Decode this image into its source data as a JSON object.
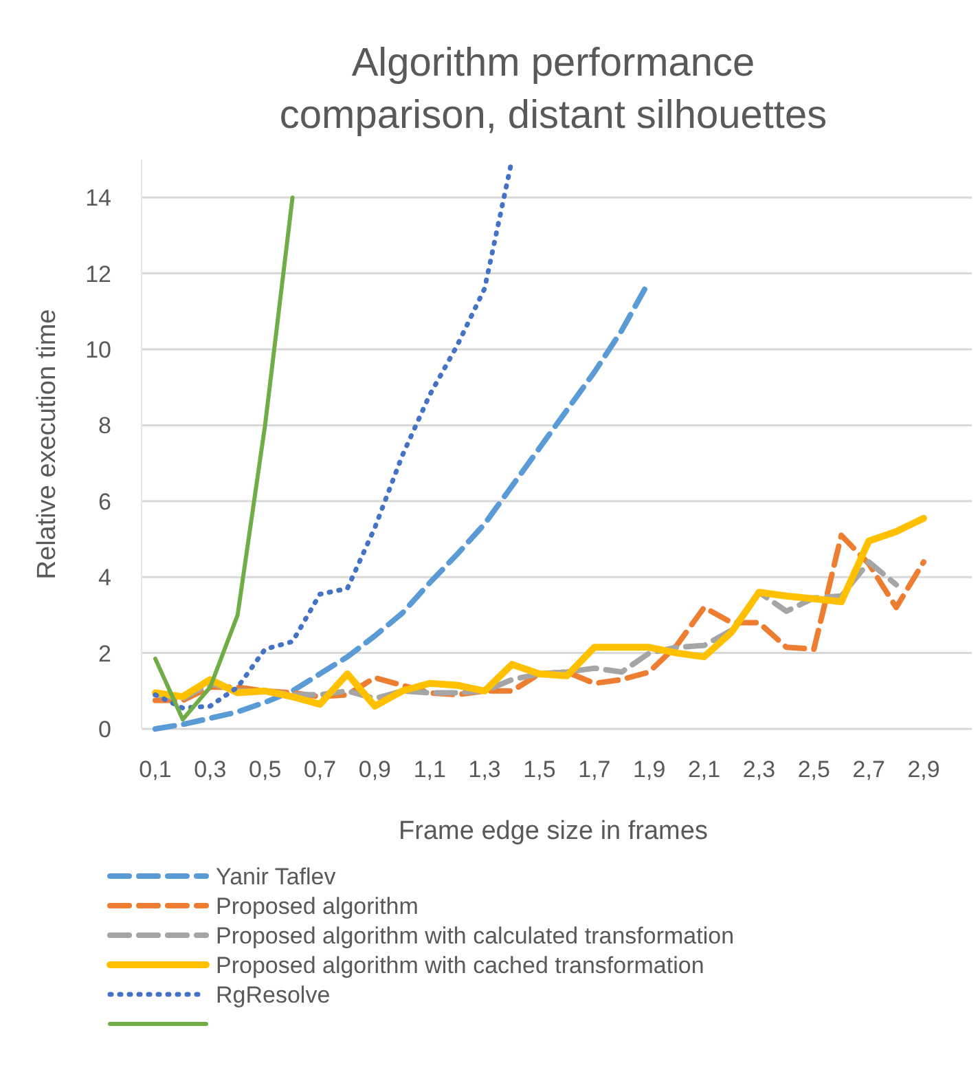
{
  "chart_data": {
    "type": "line",
    "title": "Algorithm performance comparison, distant silhouettes",
    "xlabel": "Frame edge size in frames",
    "ylabel": "Relative execution time",
    "categories": [
      "0,1",
      null,
      "0,3",
      null,
      "0,5",
      null,
      "0,7",
      null,
      "0,9",
      null,
      "1,1",
      null,
      "1,3",
      null,
      "1,5",
      null,
      "1,7",
      null,
      "1,9",
      null,
      "2,1",
      null,
      "2,3",
      null,
      "2,5",
      null,
      "2,7",
      null,
      "2,9"
    ],
    "ylim": [
      0,
      15
    ],
    "yticks": [
      0,
      2,
      4,
      6,
      8,
      10,
      12,
      14
    ],
    "grid": "y",
    "legend": "bottom",
    "series": [
      {
        "name": "Yanir Taflev",
        "color": "#5b9bd5",
        "line_style": "dashed",
        "values": [
          0,
          0.12,
          0.28,
          0.45,
          0.7,
          1.0,
          1.45,
          1.9,
          2.45,
          3.05,
          3.85,
          4.6,
          5.4,
          6.4,
          7.4,
          8.4,
          9.4,
          10.5,
          11.8,
          null,
          null,
          null,
          null,
          null,
          null,
          null,
          null,
          null,
          null
        ]
      },
      {
        "name": "Proposed algorithm",
        "color": "#ed7d31",
        "line_style": "dashed",
        "values": [
          0.75,
          0.75,
          1.1,
          1.1,
          1.0,
          0.95,
          0.85,
          0.9,
          1.35,
          1.15,
          0.95,
          0.9,
          1.0,
          1.0,
          1.45,
          1.5,
          1.2,
          1.3,
          1.5,
          2.2,
          3.2,
          2.8,
          2.8,
          2.15,
          2.1,
          5.1,
          4.35,
          3.2,
          4.4
        ]
      },
      {
        "name": "Proposed algorithm with calculated transformation",
        "color": "#a5a5a5",
        "line_style": "dashed",
        "values": [
          0.9,
          0.8,
          1.2,
          1.0,
          1.0,
          0.9,
          0.9,
          1.0,
          0.8,
          1.0,
          0.95,
          0.95,
          1.0,
          1.3,
          1.45,
          1.5,
          1.6,
          1.5,
          2.0,
          2.15,
          2.2,
          2.6,
          3.6,
          3.1,
          3.45,
          3.5,
          4.4,
          3.8,
          null
        ]
      },
      {
        "name": "Proposed algorithm with cached transformation",
        "color": "#ffc000",
        "line_style": "solid",
        "values": [
          0.95,
          0.85,
          1.3,
          0.95,
          1.0,
          0.85,
          0.65,
          1.45,
          0.6,
          1.0,
          1.2,
          1.15,
          1.0,
          1.7,
          1.45,
          1.4,
          2.15,
          2.15,
          2.15,
          2.0,
          1.9,
          2.55,
          3.6,
          3.5,
          3.43,
          3.35,
          4.95,
          5.2,
          5.55
        ]
      },
      {
        "name": "RgResolve",
        "color": "#4472c4",
        "line_style": "dotted",
        "values": [
          0.9,
          0.55,
          0.6,
          1.1,
          2.1,
          2.3,
          3.55,
          3.7,
          5.3,
          7.2,
          8.8,
          10.1,
          11.6,
          15,
          null,
          null,
          null,
          null,
          null,
          null,
          null,
          null,
          null,
          null,
          null,
          null,
          null,
          null,
          null
        ]
      },
      {
        "color": "#70ad47",
        "line_style": "solid",
        "values": [
          1.85,
          0.25,
          1.1,
          3.0,
          8.0,
          14.0,
          null,
          null,
          null,
          null,
          null,
          null,
          null,
          null,
          null,
          null,
          null,
          null,
          null,
          null,
          null,
          null,
          null,
          null,
          null,
          null,
          null,
          null,
          null
        ]
      }
    ]
  }
}
